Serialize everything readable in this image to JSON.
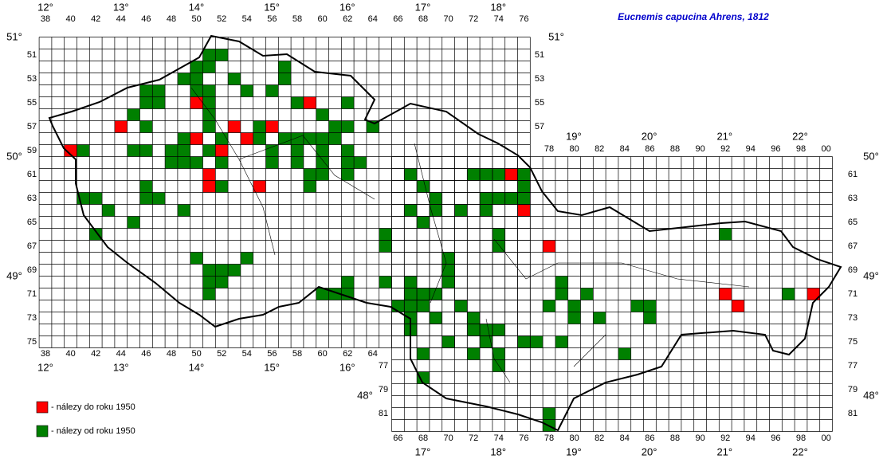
{
  "title": "Eucnemis capucina Ahrens, 1812",
  "legend": [
    "- nálezy do roku 1950",
    "- nálezy od roku 1950"
  ],
  "legend_colors": [
    "#ff0000",
    "#008000"
  ],
  "col_labels_top": [
    "38",
    "40",
    "42",
    "44",
    "46",
    "48",
    "50",
    "52",
    "54",
    "56",
    "58",
    "60",
    "62",
    "64",
    "66",
    "68",
    "70",
    "72",
    "74",
    "76"
  ],
  "col_labels_top_right": [
    "78",
    "80",
    "82",
    "84",
    "86",
    "88",
    "90",
    "92",
    "94",
    "96",
    "98",
    "00"
  ],
  "col_labels_bottom": [
    "38",
    "40",
    "42",
    "44",
    "46",
    "48",
    "50",
    "52",
    "54",
    "56",
    "58",
    "60",
    "62",
    "64"
  ],
  "col_labels_bottom_right": [
    "66",
    "68",
    "70",
    "72",
    "74",
    "76",
    "78",
    "80",
    "82",
    "84",
    "86",
    "88",
    "90",
    "92",
    "94",
    "96",
    "98",
    "00"
  ],
  "row_labels_left": [
    "51",
    "53",
    "55",
    "57",
    "59",
    "61",
    "63",
    "65",
    "67",
    "69",
    "71",
    "73",
    "75"
  ],
  "row_labels_right": [
    "51",
    "53",
    "55",
    "57"
  ],
  "row_labels_left_lower": [
    "77",
    "79",
    "81"
  ],
  "row_labels_right_lower": [
    "61",
    "63",
    "65",
    "67",
    "69",
    "71",
    "73",
    "75",
    "77",
    "79",
    "81"
  ],
  "lon_top": [
    "12°",
    "13°",
    "14°",
    "15°",
    "16°",
    "17°",
    "18°"
  ],
  "lon_top_right": [
    "19°",
    "20°",
    "21°",
    "22°"
  ],
  "lon_bottom": [
    "12°",
    "13°",
    "14°",
    "15°",
    "16°"
  ],
  "lon_bottom_right": [
    "17°",
    "18°",
    "19°",
    "20°",
    "21°",
    "22°"
  ],
  "lat_left": [
    "51°",
    "50°",
    "49°"
  ],
  "lat_right": [
    "51°",
    "50°",
    "49°",
    "48°"
  ],
  "lat_left_lower": [
    "48°"
  ],
  "records_before_1950": [
    [
      40,
      59
    ],
    [
      44,
      57
    ],
    [
      50,
      55
    ],
    [
      50,
      58
    ],
    [
      53,
      57
    ],
    [
      52,
      59
    ],
    [
      54,
      58
    ],
    [
      56,
      57
    ],
    [
      59,
      55
    ],
    [
      51,
      61
    ],
    [
      51,
      62
    ],
    [
      55,
      62
    ],
    [
      75,
      61
    ],
    [
      76,
      64
    ],
    [
      78,
      67
    ],
    [
      92,
      71
    ],
    [
      93,
      72
    ],
    [
      99,
      71
    ]
  ],
  "records_since_1950": [
    [
      51,
      51
    ],
    [
      52,
      51
    ],
    [
      50,
      52
    ],
    [
      51,
      52
    ],
    [
      57,
      52
    ],
    [
      49,
      53
    ],
    [
      50,
      53
    ],
    [
      53,
      53
    ],
    [
      57,
      53
    ],
    [
      46,
      54
    ],
    [
      47,
      54
    ],
    [
      50,
      54
    ],
    [
      51,
      54
    ],
    [
      54,
      54
    ],
    [
      56,
      54
    ],
    [
      46,
      55
    ],
    [
      47,
      55
    ],
    [
      51,
      55
    ],
    [
      58,
      55
    ],
    [
      62,
      55
    ],
    [
      45,
      56
    ],
    [
      51,
      56
    ],
    [
      60,
      56
    ],
    [
      46,
      57
    ],
    [
      51,
      57
    ],
    [
      55,
      57
    ],
    [
      61,
      57
    ],
    [
      62,
      57
    ],
    [
      64,
      57
    ],
    [
      49,
      58
    ],
    [
      52,
      58
    ],
    [
      55,
      58
    ],
    [
      57,
      58
    ],
    [
      58,
      58
    ],
    [
      59,
      58
    ],
    [
      60,
      58
    ],
    [
      61,
      58
    ],
    [
      41,
      59
    ],
    [
      45,
      59
    ],
    [
      46,
      59
    ],
    [
      48,
      59
    ],
    [
      49,
      59
    ],
    [
      51,
      59
    ],
    [
      56,
      59
    ],
    [
      58,
      59
    ],
    [
      60,
      59
    ],
    [
      62,
      59
    ],
    [
      48,
      60
    ],
    [
      49,
      60
    ],
    [
      50,
      60
    ],
    [
      52,
      60
    ],
    [
      56,
      60
    ],
    [
      58,
      60
    ],
    [
      60,
      60
    ],
    [
      62,
      60
    ],
    [
      63,
      60
    ],
    [
      59,
      61
    ],
    [
      60,
      61
    ],
    [
      62,
      61
    ],
    [
      67,
      61
    ],
    [
      72,
      61
    ],
    [
      73,
      61
    ],
    [
      74,
      61
    ],
    [
      76,
      61
    ],
    [
      46,
      62
    ],
    [
      52,
      62
    ],
    [
      59,
      62
    ],
    [
      68,
      62
    ],
    [
      76,
      62
    ],
    [
      41,
      63
    ],
    [
      42,
      63
    ],
    [
      46,
      63
    ],
    [
      47,
      63
    ],
    [
      69,
      63
    ],
    [
      73,
      63
    ],
    [
      74,
      63
    ],
    [
      75,
      63
    ],
    [
      76,
      63
    ],
    [
      43,
      64
    ],
    [
      49,
      64
    ],
    [
      67,
      64
    ],
    [
      69,
      64
    ],
    [
      71,
      64
    ],
    [
      73,
      64
    ],
    [
      45,
      65
    ],
    [
      68,
      65
    ],
    [
      42,
      66
    ],
    [
      65,
      66
    ],
    [
      74,
      66
    ],
    [
      92,
      66
    ],
    [
      65,
      67
    ],
    [
      74,
      67
    ],
    [
      50,
      68
    ],
    [
      54,
      68
    ],
    [
      70,
      68
    ],
    [
      51,
      69
    ],
    [
      52,
      69
    ],
    [
      53,
      69
    ],
    [
      70,
      69
    ],
    [
      51,
      70
    ],
    [
      52,
      70
    ],
    [
      62,
      70
    ],
    [
      65,
      70
    ],
    [
      67,
      70
    ],
    [
      70,
      70
    ],
    [
      79,
      70
    ],
    [
      51,
      71
    ],
    [
      60,
      71
    ],
    [
      61,
      71
    ],
    [
      62,
      71
    ],
    [
      67,
      71
    ],
    [
      68,
      71
    ],
    [
      69,
      71
    ],
    [
      79,
      71
    ],
    [
      81,
      71
    ],
    [
      97,
      71
    ],
    [
      66,
      72
    ],
    [
      67,
      72
    ],
    [
      68,
      72
    ],
    [
      71,
      72
    ],
    [
      78,
      72
    ],
    [
      80,
      72
    ],
    [
      85,
      72
    ],
    [
      86,
      72
    ],
    [
      67,
      73
    ],
    [
      69,
      73
    ],
    [
      72,
      73
    ],
    [
      80,
      73
    ],
    [
      82,
      73
    ],
    [
      86,
      73
    ],
    [
      67,
      74
    ],
    [
      72,
      74
    ],
    [
      73,
      74
    ],
    [
      74,
      74
    ],
    [
      70,
      75
    ],
    [
      73,
      75
    ],
    [
      76,
      75
    ],
    [
      77,
      75
    ],
    [
      79,
      75
    ],
    [
      68,
      76
    ],
    [
      72,
      76
    ],
    [
      74,
      76
    ],
    [
      84,
      76
    ],
    [
      68,
      78
    ],
    [
      74,
      77
    ],
    [
      78,
      81
    ],
    [
      78,
      82
    ]
  ]
}
